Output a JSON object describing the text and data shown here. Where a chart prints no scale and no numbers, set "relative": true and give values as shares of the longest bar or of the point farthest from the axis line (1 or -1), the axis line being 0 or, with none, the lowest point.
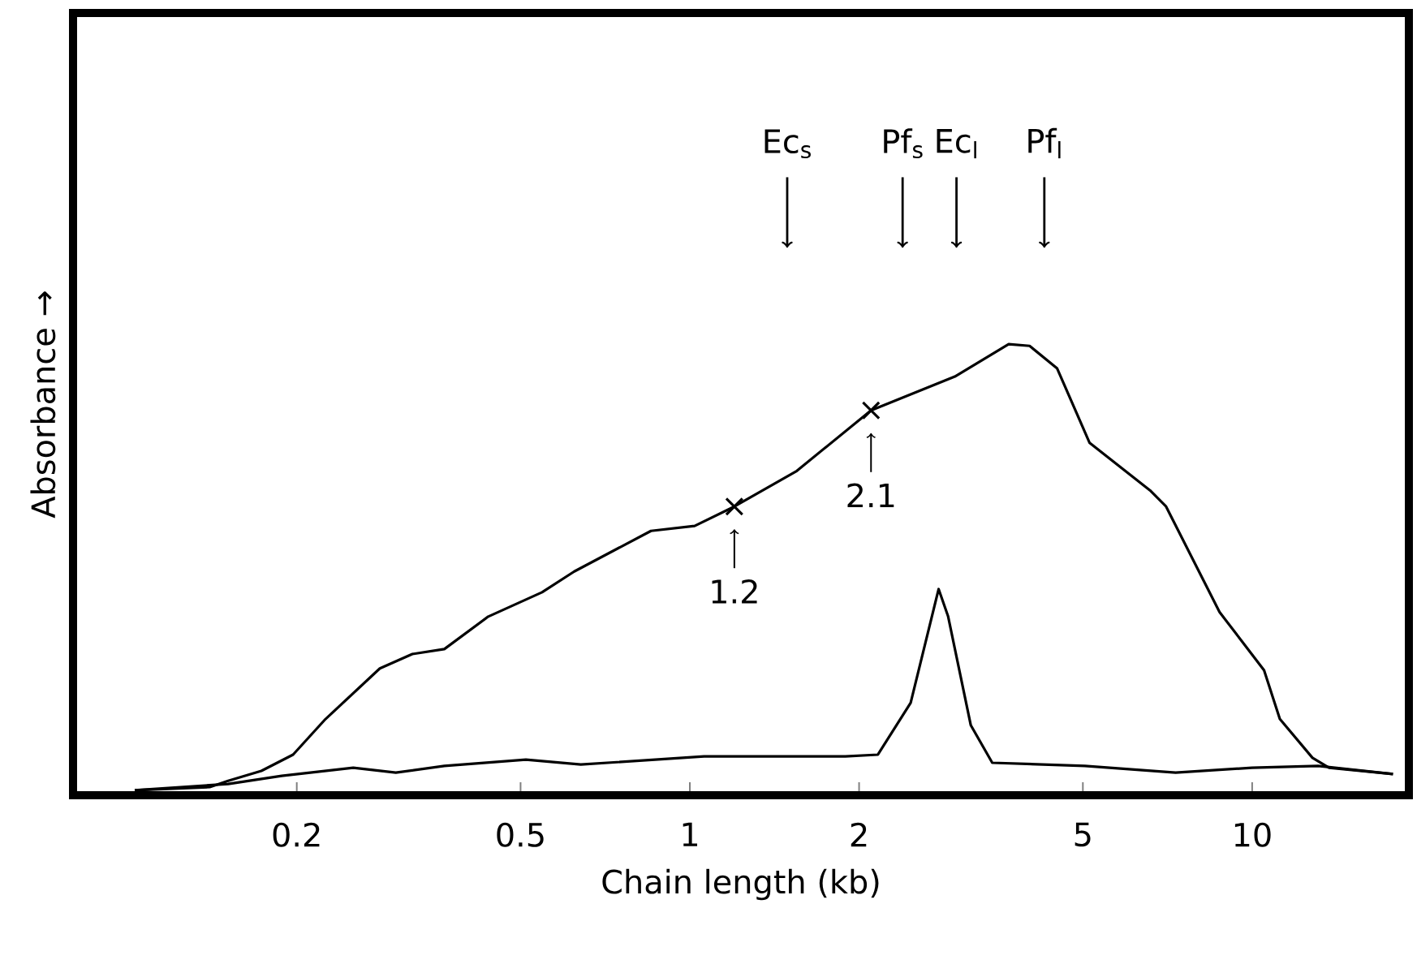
{
  "chart_data": {
    "type": "line",
    "xlabel": "Chain length (kb)",
    "ylabel": "Absorbance →",
    "relative": true,
    "log": "x",
    "grid": false,
    "marker": "none",
    "line_style": "solid",
    "tick_labels": "x",
    "xlim": [
      0.08,
      19
    ],
    "xticks": [
      0.2,
      0.5,
      1,
      2,
      5,
      10
    ],
    "series": [
      {
        "color": "#000000",
        "x": [
          0.103,
          0.14,
          0.151,
          0.173,
          0.197,
          0.225,
          0.281,
          0.321,
          0.366,
          0.438,
          0.546,
          0.623,
          0.853,
          1.02,
          1.2,
          1.55,
          2.1,
          2.96,
          3.69,
          4.02,
          4.5,
          5.14,
          6.58,
          7.03,
          8.75,
          10.5,
          11.2,
          12.8,
          13.7,
          17.8
        ],
        "values": [
          0.011,
          0.018,
          0.032,
          0.054,
          0.09,
          0.169,
          0.281,
          0.313,
          0.324,
          0.396,
          0.45,
          0.496,
          0.586,
          0.597,
          0.64,
          0.719,
          0.853,
          0.928,
          1.0,
          0.996,
          0.946,
          0.781,
          0.676,
          0.64,
          0.406,
          0.277,
          0.169,
          0.083,
          0.061,
          0.047
        ]
      },
      {
        "color": "#000000",
        "x": [
          0.103,
          0.151,
          0.188,
          0.252,
          0.3,
          0.366,
          0.511,
          0.64,
          1.06,
          1.89,
          2.16,
          2.47,
          2.77,
          2.88,
          3.16,
          3.45,
          5.04,
          7.31,
          10.0,
          13.1,
          17.8
        ],
        "values": [
          0.011,
          0.025,
          0.043,
          0.061,
          0.05,
          0.065,
          0.079,
          0.068,
          0.086,
          0.086,
          0.09,
          0.205,
          0.457,
          0.396,
          0.155,
          0.072,
          0.065,
          0.05,
          0.061,
          0.065,
          0.047
        ]
      },
      {
        "type": "scatter",
        "marker": "cross",
        "color": "#000000",
        "x": [
          1.2,
          2.1
        ],
        "values": [
          0.64,
          0.853
        ]
      }
    ],
    "annotations": [
      {
        "text": "1.2",
        "x": 1.2,
        "y": 0.64
      },
      {
        "text": "2.1",
        "x": 2.1,
        "y": 0.853
      }
    ],
    "ref_lines": [
      {
        "axis": "x",
        "value": 1.49,
        "label": "Ec$_{s}$"
      },
      {
        "axis": "x",
        "value": 2.39,
        "label": "Pf$_{s}$"
      },
      {
        "axis": "x",
        "value": 2.98,
        "label": "Ec$_{l}$"
      },
      {
        "axis": "x",
        "value": 4.27,
        "label": "Pf$_{l}$"
      }
    ]
  }
}
